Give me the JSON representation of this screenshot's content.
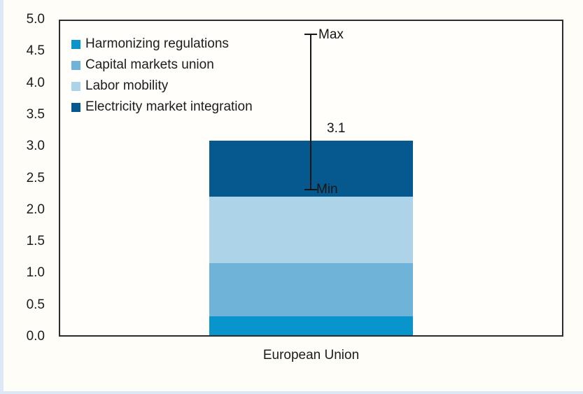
{
  "chart_data": {
    "type": "bar",
    "subtype": "stacked",
    "title": "",
    "categories": [
      "European Union"
    ],
    "series": [
      {
        "name": "Harmonizing regulations",
        "color": "#0995cb",
        "values": [
          0.3
        ]
      },
      {
        "name": "Capital markets union",
        "color": "#6fb3d8",
        "values": [
          0.85
        ]
      },
      {
        "name": "Labor mobility",
        "color": "#acd3e8",
        "values": [
          1.05
        ]
      },
      {
        "name": "Electricity market integration",
        "color": "#05598f",
        "values": [
          0.9
        ]
      }
    ],
    "total": 3.1,
    "total_label": "3.1",
    "error_bar": {
      "min": 2.3,
      "max": 4.8,
      "min_label": "Min",
      "max_label": "Max"
    },
    "ylim": [
      0,
      5
    ],
    "yticks": [
      "5.0",
      "4.5",
      "4.0",
      "3.5",
      "3.0",
      "2.5",
      "2.0",
      "1.5",
      "1.0",
      "0.5",
      "0.0"
    ],
    "grid": false,
    "legend_position": "top-left-inside"
  },
  "colors": {
    "frame": "#2d2d2d",
    "text": "#1c1c1c",
    "error_bar": "#151515",
    "page_background": "#fffdf8",
    "page_edge": "#dce8f5",
    "plot_background": "#fffefb"
  }
}
